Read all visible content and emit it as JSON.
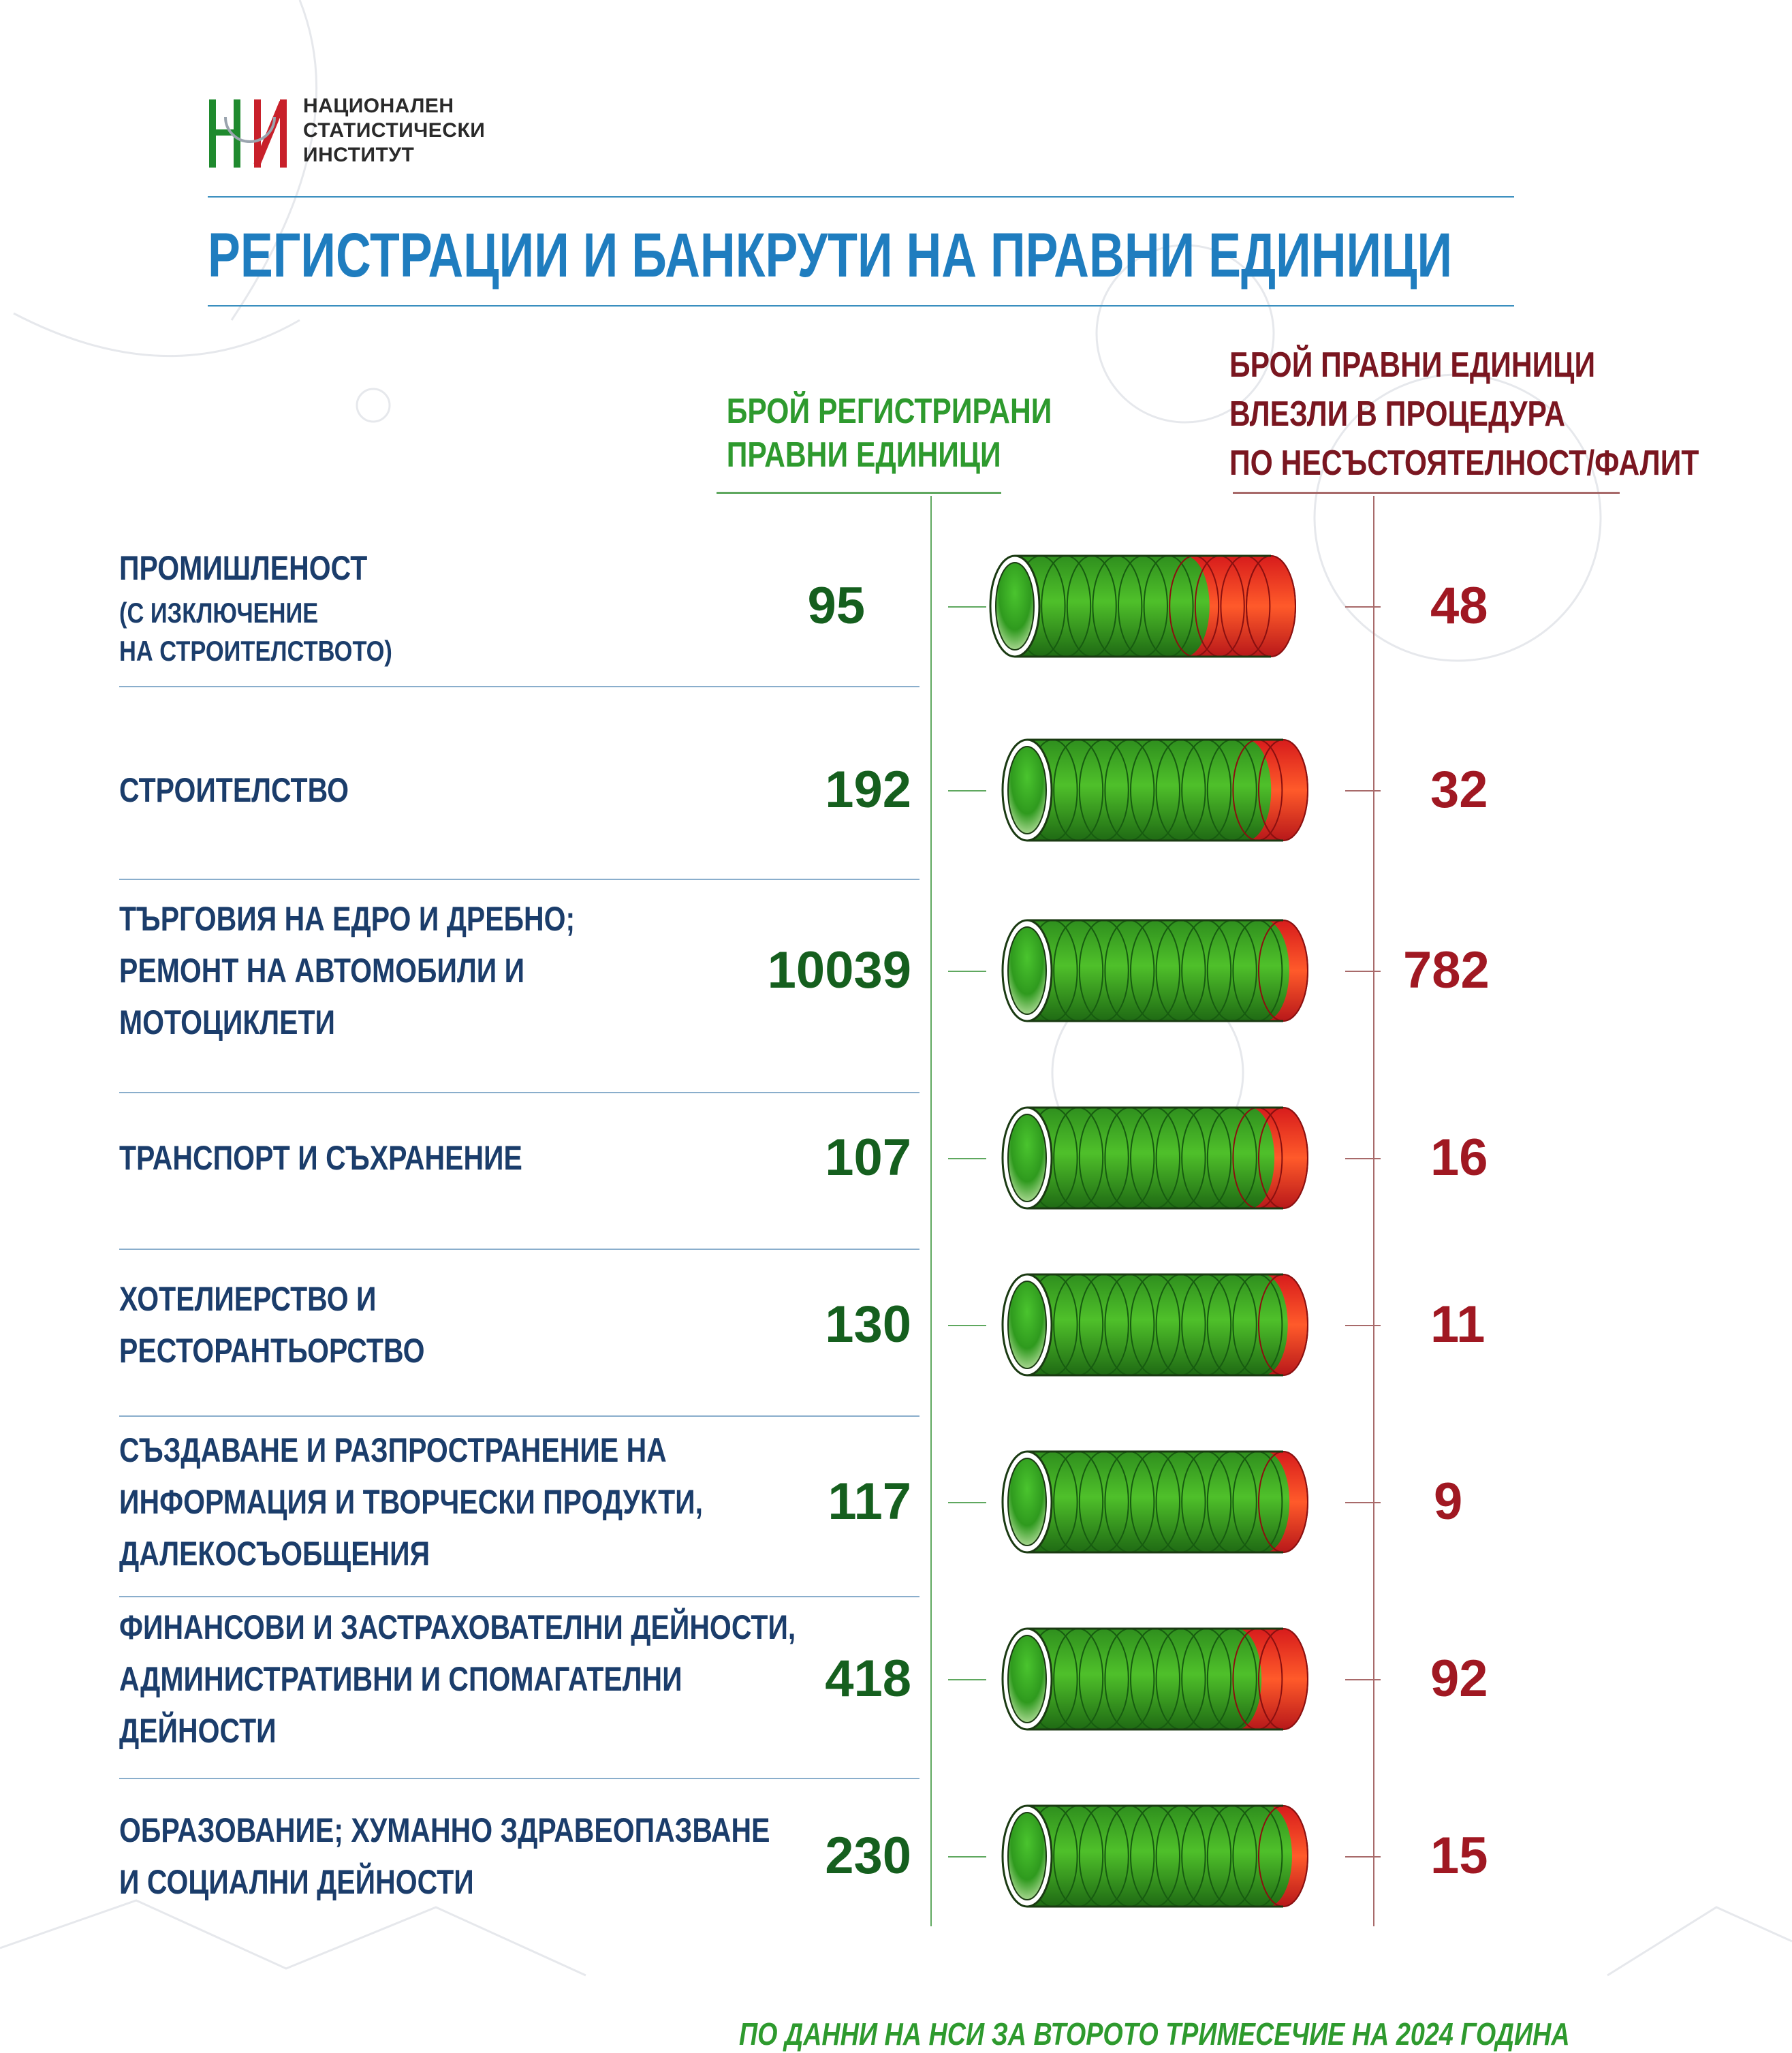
{
  "logo": {
    "mark": "НСИ",
    "lines": [
      "НАЦИОНАЛЕН",
      "СТАТИСТИЧЕСКИ",
      "ИНСТИТУТ"
    ]
  },
  "title": "РЕГИСТРАЦИИ И БАНКРУТИ НА ПРАВНИ ЕДИНИЦИ",
  "headers": {
    "registered": [
      "БРОЙ РЕГИСТРИРАНИ",
      "ПРАВНИ ЕДИНИЦИ"
    ],
    "bankrupt": [
      "БРОЙ ПРАВНИ ЕДИНИЦИ",
      "ВЛЕЗЛИ В ПРОЦЕДУРА",
      "ПО НЕСЪСТОЯТЕЛНОСТ/ФАЛИТ"
    ]
  },
  "footer": "ПО ДАННИ НА НСИ ЗА ВТОРОТО ТРИМЕСЕЧИЕ НА 2024 ГОДИНА",
  "colors": {
    "title": "#1f7dbf",
    "registered": "#155f1e",
    "bankrupt": "#a01822",
    "category": "#1b3d6b"
  },
  "chart_data": {
    "type": "bar",
    "categories": [
      "ПРОМИШЛЕНОСТ (С ИЗКЛЮЧЕНИЕ НА СТРОИТЕЛСТВОТО)",
      "СТРОИТЕЛСТВО",
      "ТЪРГОВИЯ НА ЕДРО И ДРЕБНО; РЕМОНТ НА АВТОМОБИЛИ И МОТОЦИКЛЕТИ",
      "ТРАНСПОРТ И СЪХРАНЕНИЕ",
      "ХОТЕЛИЕРСТВО И РЕСТОРАНТЬОРСТВО",
      "СЪЗДАВАНЕ И РАЗПРОСТРАНЕНИЕ НА ИНФОРМАЦИЯ И ТВОРЧЕСКИ ПРОДУКТИ, ДАЛЕКОСЪОБЩЕНИЯ",
      "ФИНАНСОВИ И ЗАСТРАХОВАТЕЛНИ ДЕЙНОСТИ, АДМИНИСТРАТИВНИ И СПОМАГАТЕЛНИ ДЕЙНОСТИ",
      "ОБРАЗОВАНИЕ; ХУМАННО ЗДРАВЕОПАЗВАНЕ И СОЦИАЛНИ ДЕЙНОСТИ"
    ],
    "series": [
      {
        "name": "БРОЙ РЕГИСТРИРАНИ ПРАВНИ ЕДИНИЦИ",
        "values": [
          95,
          192,
          10039,
          107,
          130,
          117,
          418,
          230
        ]
      },
      {
        "name": "БРОЙ ПРАВНИ ЕДИНИЦИ ВЛЕЗЛИ В ПРОЦЕДУРА ПО НЕСЪСТОЯТЕЛНОСТ/ФАЛИТ",
        "values": [
          48,
          32,
          782,
          16,
          11,
          9,
          92,
          15
        ]
      }
    ],
    "rows": [
      {
        "label_lines": [
          "ПРОМИШЛЕНОСТ"
        ],
        "label_small": [
          "(С ИЗКЛЮЧЕНИЕ",
          "НА СТРОИТЕЛСТВОТО)"
        ],
        "registered": "95",
        "bankrupt": "48"
      },
      {
        "label_lines": [
          "СТРОИТЕЛСТВО"
        ],
        "label_small": [],
        "registered": "192",
        "bankrupt": "32"
      },
      {
        "label_lines": [
          "ТЪРГОВИЯ НА ЕДРО И ДРЕБНО;",
          "РЕМОНТ НА АВТОМОБИЛИ И",
          "МОТОЦИКЛЕТИ"
        ],
        "label_small": [],
        "registered": "10039",
        "bankrupt": "782"
      },
      {
        "label_lines": [
          "ТРАНСПОРТ И СЪХРАНЕНИЕ"
        ],
        "label_small": [],
        "registered": "107",
        "bankrupt": "16"
      },
      {
        "label_lines": [
          "ХОТЕЛИЕРСТВО И",
          "РЕСТОРАНТЬОРСТВО"
        ],
        "label_small": [],
        "registered": "130",
        "bankrupt": "11"
      },
      {
        "label_lines": [
          "СЪЗДАВАНЕ И РАЗПРОСТРАНЕНИЕ НА",
          "ИНФОРМАЦИЯ И ТВОРЧЕСКИ ПРОДУКТИ,",
          "ДАЛЕКОСЪОБЩЕНИЯ"
        ],
        "label_small": [],
        "registered": "117",
        "bankrupt": "9"
      },
      {
        "label_lines": [
          "ФИНАНСОВИ И ЗАСТРАХОВАТЕЛНИ ДЕЙНОСТИ,",
          "АДМИНИСТРАТИВНИ И СПОМАГАТЕЛНИ",
          "ДЕЙНОСТИ"
        ],
        "label_small": [],
        "registered": "418",
        "bankrupt": "92"
      },
      {
        "label_lines": [
          "ОБРАЗОВАНИЕ; ХУМАННО ЗДРАВЕОПАЗВАНЕ",
          "И СОЦИАЛНИ ДЕЙНОСТИ"
        ],
        "label_small": [],
        "registered": "230",
        "bankrupt": "15"
      }
    ]
  }
}
